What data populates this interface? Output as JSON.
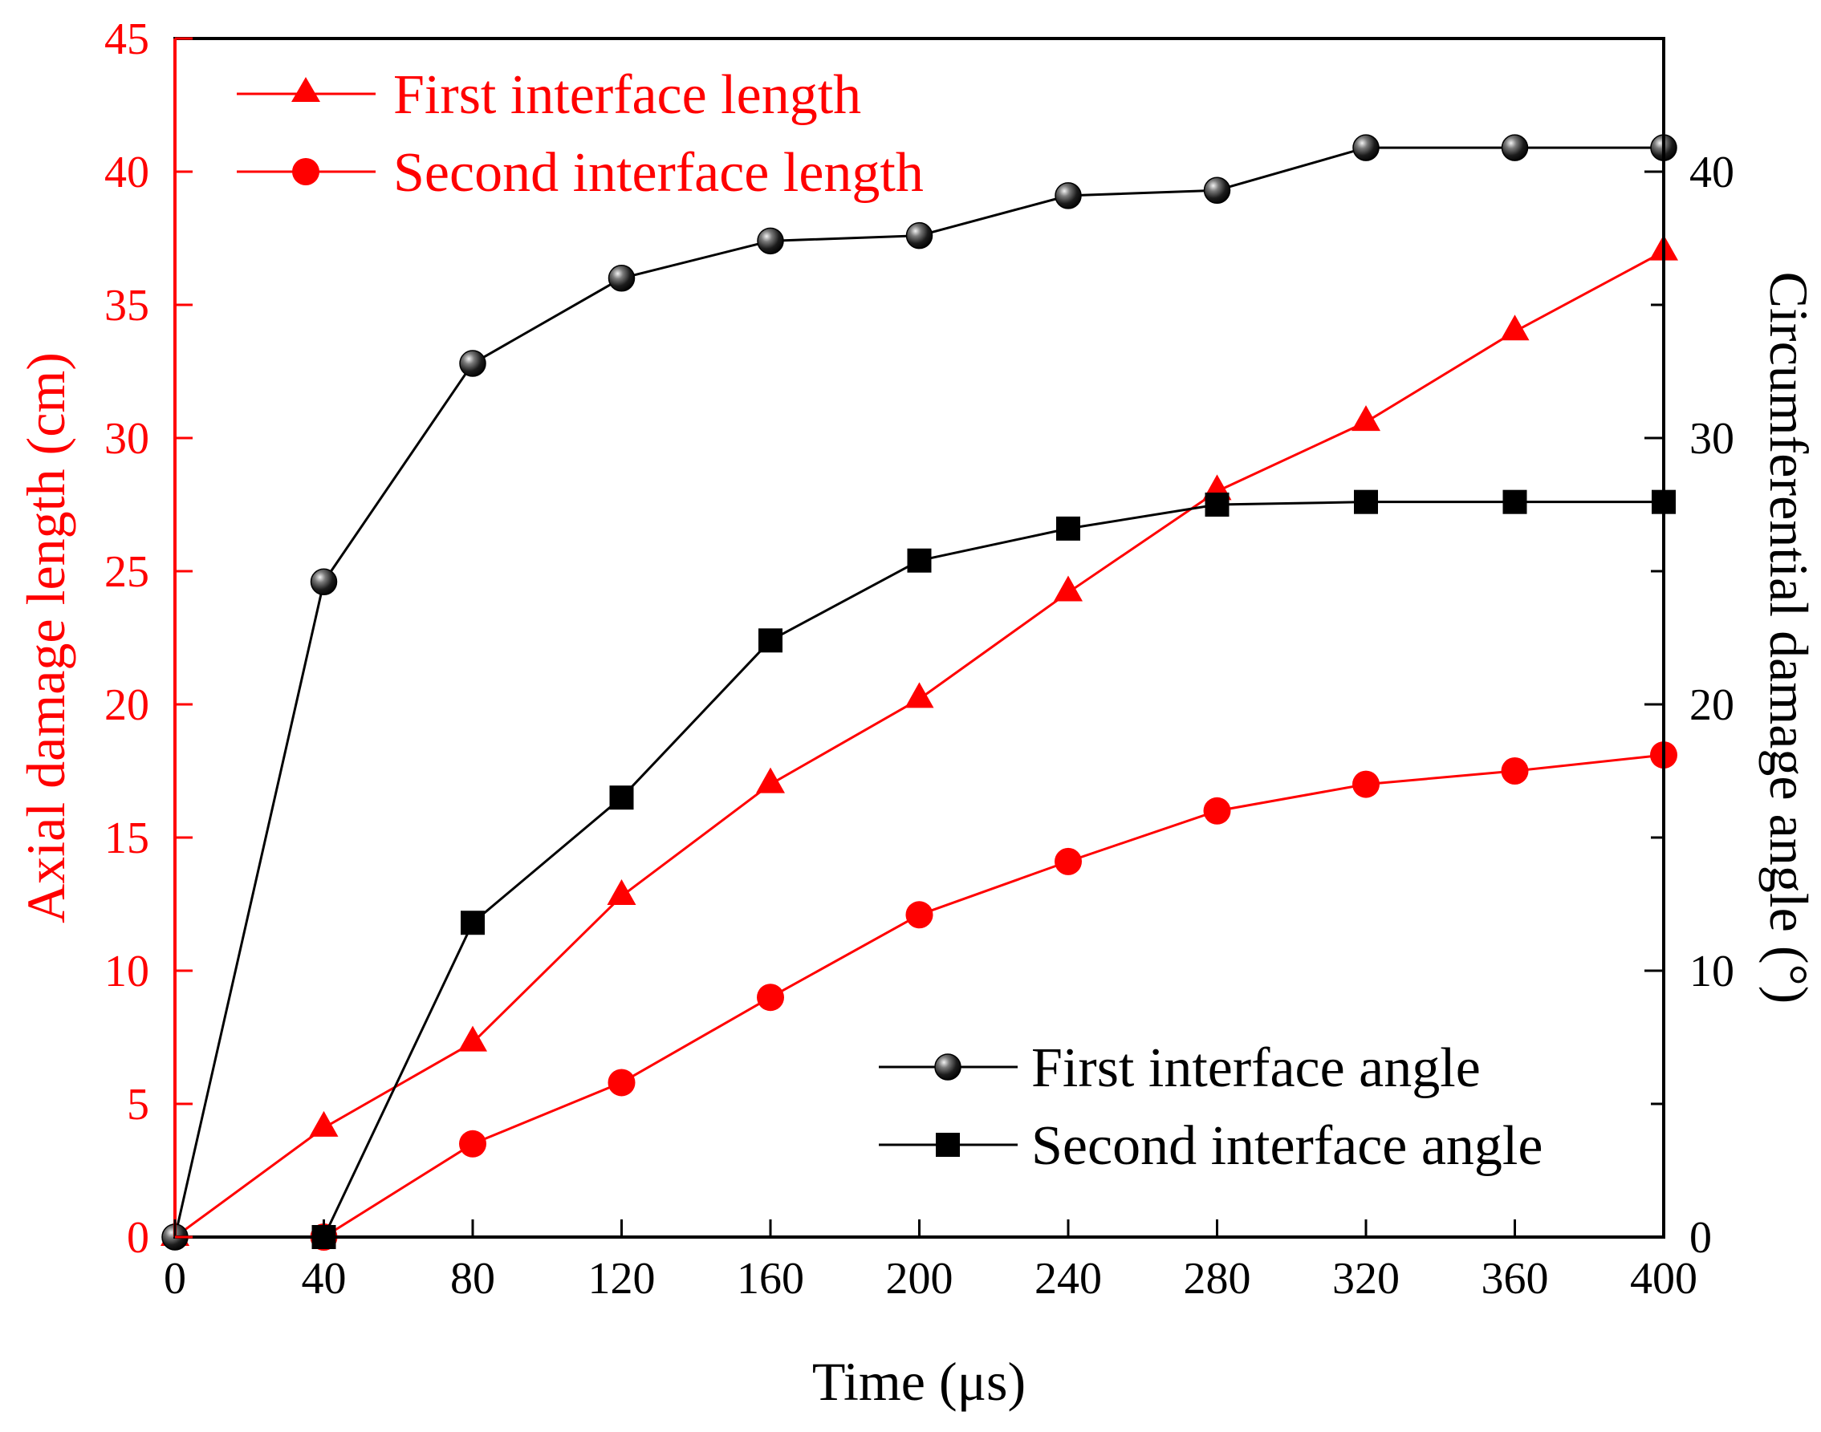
{
  "chart_data": {
    "type": "line",
    "x": [
      0,
      40,
      80,
      120,
      160,
      200,
      240,
      280,
      320,
      360,
      400
    ],
    "xlabel": "Time (μs)",
    "xlim": [
      0,
      400
    ],
    "xticks": [
      0,
      40,
      80,
      120,
      160,
      200,
      240,
      280,
      320,
      360,
      400
    ],
    "ylabel": "Axial damage length (cm)",
    "ylim": [
      0,
      45
    ],
    "yticks": [
      0,
      5,
      10,
      15,
      20,
      25,
      30,
      35,
      40,
      45
    ],
    "y2label": "Circumferential damage angle (°)",
    "y2lim": [
      0,
      45
    ],
    "y2ticks": [
      0,
      10,
      20,
      30,
      40
    ],
    "grid": false,
    "colors": {
      "length": "#ff0000",
      "angle": "#000000"
    },
    "legends": [
      {
        "placement": "top-left",
        "series": [
          "First interface length",
          "Second interface length"
        ]
      },
      {
        "placement": "bottom-right",
        "series": [
          "First interface angle",
          "Second interface angle"
        ]
      }
    ],
    "series": [
      {
        "name": "First interface length",
        "axis": "left",
        "color": "#ff0000",
        "marker": "triangle",
        "values": [
          0,
          4.1,
          7.3,
          12.8,
          17.0,
          20.2,
          24.2,
          28.0,
          30.6,
          34.0,
          37.0
        ]
      },
      {
        "name": "Second interface length",
        "axis": "left",
        "color": "#ff0000",
        "marker": "circle",
        "values": [
          null,
          0,
          3.5,
          5.8,
          9.0,
          12.1,
          14.1,
          16.0,
          17.0,
          17.5,
          18.1
        ]
      },
      {
        "name": "First interface angle",
        "axis": "right",
        "color": "#000000",
        "marker": "sphere",
        "values": [
          0,
          24.6,
          32.8,
          36.0,
          37.4,
          37.6,
          39.1,
          39.3,
          40.9,
          40.9,
          40.9
        ]
      },
      {
        "name": "Second interface angle",
        "axis": "right",
        "color": "#000000",
        "marker": "square",
        "values": [
          null,
          0,
          11.8,
          16.5,
          22.4,
          25.4,
          26.6,
          27.5,
          27.6,
          27.6,
          27.6
        ]
      }
    ]
  }
}
